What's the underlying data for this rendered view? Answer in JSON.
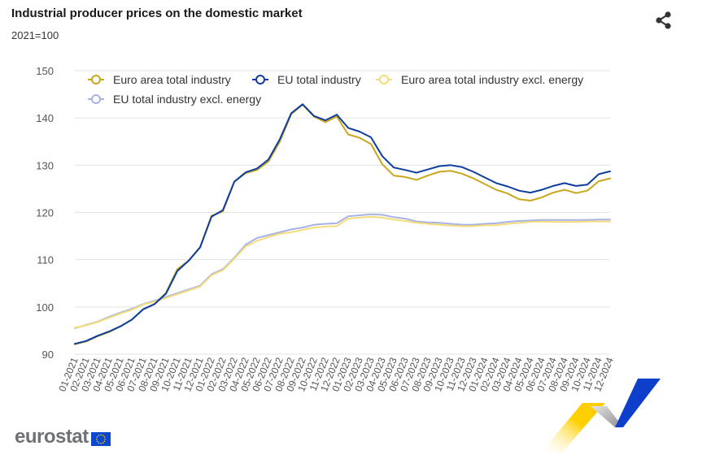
{
  "title": "Industrial producer prices on the domestic market",
  "subtitle": "2021=100",
  "logo_text": "eurostat",
  "icons": {
    "share": "share-icon",
    "flag": "eu-flag-icon"
  },
  "chart_data": {
    "type": "line",
    "ylim": [
      90,
      150
    ],
    "yticks": [
      90,
      100,
      110,
      120,
      130,
      140,
      150
    ],
    "grid": true,
    "legend_position": "top",
    "x": [
      "01-2021",
      "02-2021",
      "03-2021",
      "04-2021",
      "05-2021",
      "06-2021",
      "07-2021",
      "08-2021",
      "09-2021",
      "10-2021",
      "11-2021",
      "12-2021",
      "01-2022",
      "02-2022",
      "03-2022",
      "04-2022",
      "05-2022",
      "06-2022",
      "07-2022",
      "08-2022",
      "09-2022",
      "10-2022",
      "11-2022",
      "12-2022",
      "01-2023",
      "02-2023",
      "03-2023",
      "04-2023",
      "05-2023",
      "06-2023",
      "07-2023",
      "08-2023",
      "09-2023",
      "10-2023",
      "11-2023",
      "12-2023",
      "01-2024",
      "02-2024",
      "03-2024",
      "04-2024",
      "05-2024",
      "06-2024",
      "07-2024",
      "08-2024",
      "09-2024",
      "10-2024",
      "11-2024",
      "12-2024"
    ],
    "series": [
      {
        "name": "Euro area total industry",
        "color": "#c9a71c",
        "values": [
          92.1,
          92.7,
          93.8,
          94.7,
          95.9,
          97.3,
          99.5,
          100.6,
          103.0,
          108.0,
          109.8,
          112.7,
          119.3,
          120.2,
          126.5,
          128.3,
          129.0,
          130.8,
          135.0,
          140.8,
          142.8,
          140.3,
          139.1,
          140.3,
          136.5,
          135.8,
          134.5,
          130.2,
          127.8,
          127.5,
          126.9,
          127.8,
          128.6,
          128.8,
          128.2,
          127.2,
          126.0,
          124.8,
          124.0,
          122.8,
          122.5,
          123.2,
          124.2,
          124.8,
          124.1,
          124.6,
          126.6,
          127.2
        ]
      },
      {
        "name": "EU total industry",
        "color": "#0e3d9e",
        "values": [
          92.2,
          92.8,
          93.9,
          94.8,
          95.9,
          97.3,
          99.5,
          100.6,
          102.8,
          107.6,
          109.8,
          112.6,
          119.1,
          120.5,
          126.5,
          128.5,
          129.3,
          131.2,
          135.5,
          141.0,
          142.9,
          140.4,
          139.5,
          140.7,
          137.9,
          137.1,
          135.9,
          131.9,
          129.5,
          129.0,
          128.4,
          129.1,
          129.8,
          130.0,
          129.6,
          128.6,
          127.4,
          126.2,
          125.5,
          124.6,
          124.2,
          124.8,
          125.6,
          126.2,
          125.6,
          125.9,
          128.1,
          128.7
        ]
      },
      {
        "name": "Euro area total industry excl. energy",
        "color": "#f5dc7a",
        "values": [
          95.6,
          96.1,
          96.8,
          97.7,
          98.6,
          99.4,
          100.5,
          101.1,
          101.9,
          102.7,
          103.5,
          104.3,
          106.7,
          107.8,
          110.2,
          112.8,
          114.0,
          114.8,
          115.5,
          115.8,
          116.3,
          116.8,
          117.0,
          117.1,
          118.7,
          118.9,
          119.1,
          118.9,
          118.5,
          118.2,
          117.8,
          117.6,
          117.4,
          117.2,
          117.1,
          117.1,
          117.3,
          117.3,
          117.6,
          117.8,
          118.0,
          118.1,
          118.0,
          118.0,
          118.0,
          118.1,
          118.1,
          118.1
        ]
      },
      {
        "name": "EU total industry excl. energy",
        "color": "#a7b3e6",
        "values": [
          95.5,
          96.2,
          96.9,
          97.9,
          98.8,
          99.6,
          100.6,
          101.3,
          102.1,
          102.9,
          103.7,
          104.5,
          106.9,
          108.0,
          110.4,
          113.2,
          114.6,
          115.2,
          115.8,
          116.4,
          116.8,
          117.4,
          117.6,
          117.7,
          119.2,
          119.4,
          119.6,
          119.5,
          119.0,
          118.7,
          118.1,
          117.9,
          117.8,
          117.6,
          117.4,
          117.4,
          117.6,
          117.7,
          118.0,
          118.2,
          118.3,
          118.4,
          118.4,
          118.4,
          118.4,
          118.4,
          118.5,
          118.5
        ]
      }
    ]
  }
}
